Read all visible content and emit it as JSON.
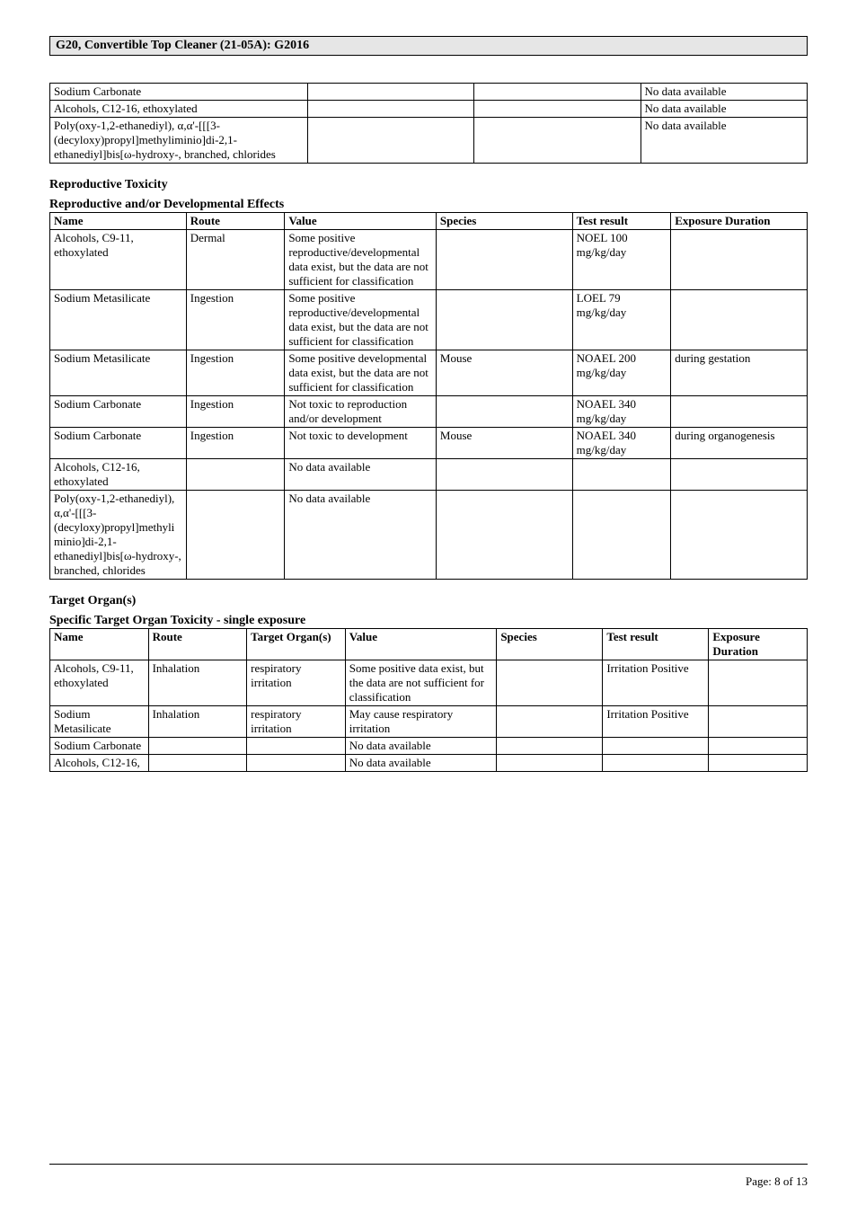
{
  "header": {
    "title": "G20, Convertible Top Cleaner (21-05A): G2016"
  },
  "top_table": {
    "col_widths": [
      "34%",
      "22%",
      "22%",
      "22%"
    ],
    "rows": [
      {
        "c0": "Sodium Carbonate",
        "c1": "",
        "c2": "",
        "c3": "No data available"
      },
      {
        "c0": "Alcohols, C12-16, ethoxylated",
        "c1": "",
        "c2": "",
        "c3": "No data available"
      },
      {
        "c0": "Poly(oxy-1,2-ethanediyl), α,α'-[[[3-(decyloxy)propyl]methyliminio]di-2,1-ethanediyl]bis[ω-hydroxy-, branched, chlorides",
        "c1": "",
        "c2": "",
        "c3": "No data available"
      }
    ]
  },
  "repro": {
    "heading": "Reproductive Toxicity",
    "subheading": "Reproductive and/or Developmental Effects",
    "col_widths": [
      "18%",
      "13%",
      "20%",
      "18%",
      "13%",
      "18%"
    ],
    "headers": [
      "Name",
      "Route",
      "Value",
      "Species",
      "Test result",
      "Exposure Duration"
    ],
    "rows": [
      {
        "c0": "Alcohols, C9-11, ethoxylated",
        "c1": "Dermal",
        "c2": "Some positive reproductive/developmental data exist, but the data are not sufficient for classification",
        "c3": "",
        "c4": "NOEL 100 mg/kg/day",
        "c5": ""
      },
      {
        "c0": "Sodium Metasilicate",
        "c1": "Ingestion",
        "c2": "Some positive reproductive/developmental data exist, but the data are not sufficient for classification",
        "c3": "",
        "c4": "LOEL 79 mg/kg/day",
        "c5": ""
      },
      {
        "c0": "Sodium Metasilicate",
        "c1": "Ingestion",
        "c2": "Some positive developmental data exist, but the data are not sufficient for classification",
        "c3": "Mouse",
        "c4": "NOAEL 200 mg/kg/day",
        "c5": "during gestation"
      },
      {
        "c0": "Sodium Carbonate",
        "c1": "Ingestion",
        "c2": "Not toxic to reproduction and/or development",
        "c3": "",
        "c4": "NOAEL 340 mg/kg/day",
        "c5": ""
      },
      {
        "c0": "Sodium Carbonate",
        "c1": "Ingestion",
        "c2": "Not toxic to development",
        "c3": "Mouse",
        "c4": "NOAEL 340 mg/kg/day",
        "c5": "during organogenesis"
      },
      {
        "c0": "Alcohols, C12-16, ethoxylated",
        "c1": "",
        "c2": "No data available",
        "c3": "",
        "c4": "",
        "c5": ""
      },
      {
        "c0": "Poly(oxy-1,2-ethanediyl), α,α'-[[[3-(decyloxy)propyl]methyliminio]di-2,1-ethanediyl]bis[ω-hydroxy-, branched, chlorides",
        "c1": "",
        "c2": "No data available",
        "c3": "",
        "c4": "",
        "c5": ""
      }
    ]
  },
  "target": {
    "heading": "Target Organ(s)",
    "subheading": "Specific Target Organ Toxicity - single exposure",
    "col_widths": [
      "13%",
      "13%",
      "13%",
      "20%",
      "14%",
      "14%",
      "13%"
    ],
    "headers": [
      "Name",
      "Route",
      "Target Organ(s)",
      "Value",
      "Species",
      "Test result",
      "Exposure Duration"
    ],
    "rows": [
      {
        "c0": "Alcohols, C9-11, ethoxylated",
        "c1": "Inhalation",
        "c2": "respiratory irritation",
        "c3": "Some positive data exist, but the data are not sufficient for classification",
        "c4": "",
        "c5": "Irritation Positive",
        "c6": ""
      },
      {
        "c0": "Sodium Metasilicate",
        "c1": "Inhalation",
        "c2": "respiratory irritation",
        "c3": "May cause respiratory irritation",
        "c4": "",
        "c5": "Irritation Positive",
        "c6": ""
      },
      {
        "c0": "Sodium Carbonate",
        "c1": "",
        "c2": "",
        "c3": "No data available",
        "c4": "",
        "c5": "",
        "c6": ""
      },
      {
        "c0": "Alcohols, C12-16,",
        "c1": "",
        "c2": "",
        "c3": "No data available",
        "c4": "",
        "c5": "",
        "c6": ""
      }
    ]
  },
  "footer": {
    "page": "Page: 8 of  13"
  }
}
